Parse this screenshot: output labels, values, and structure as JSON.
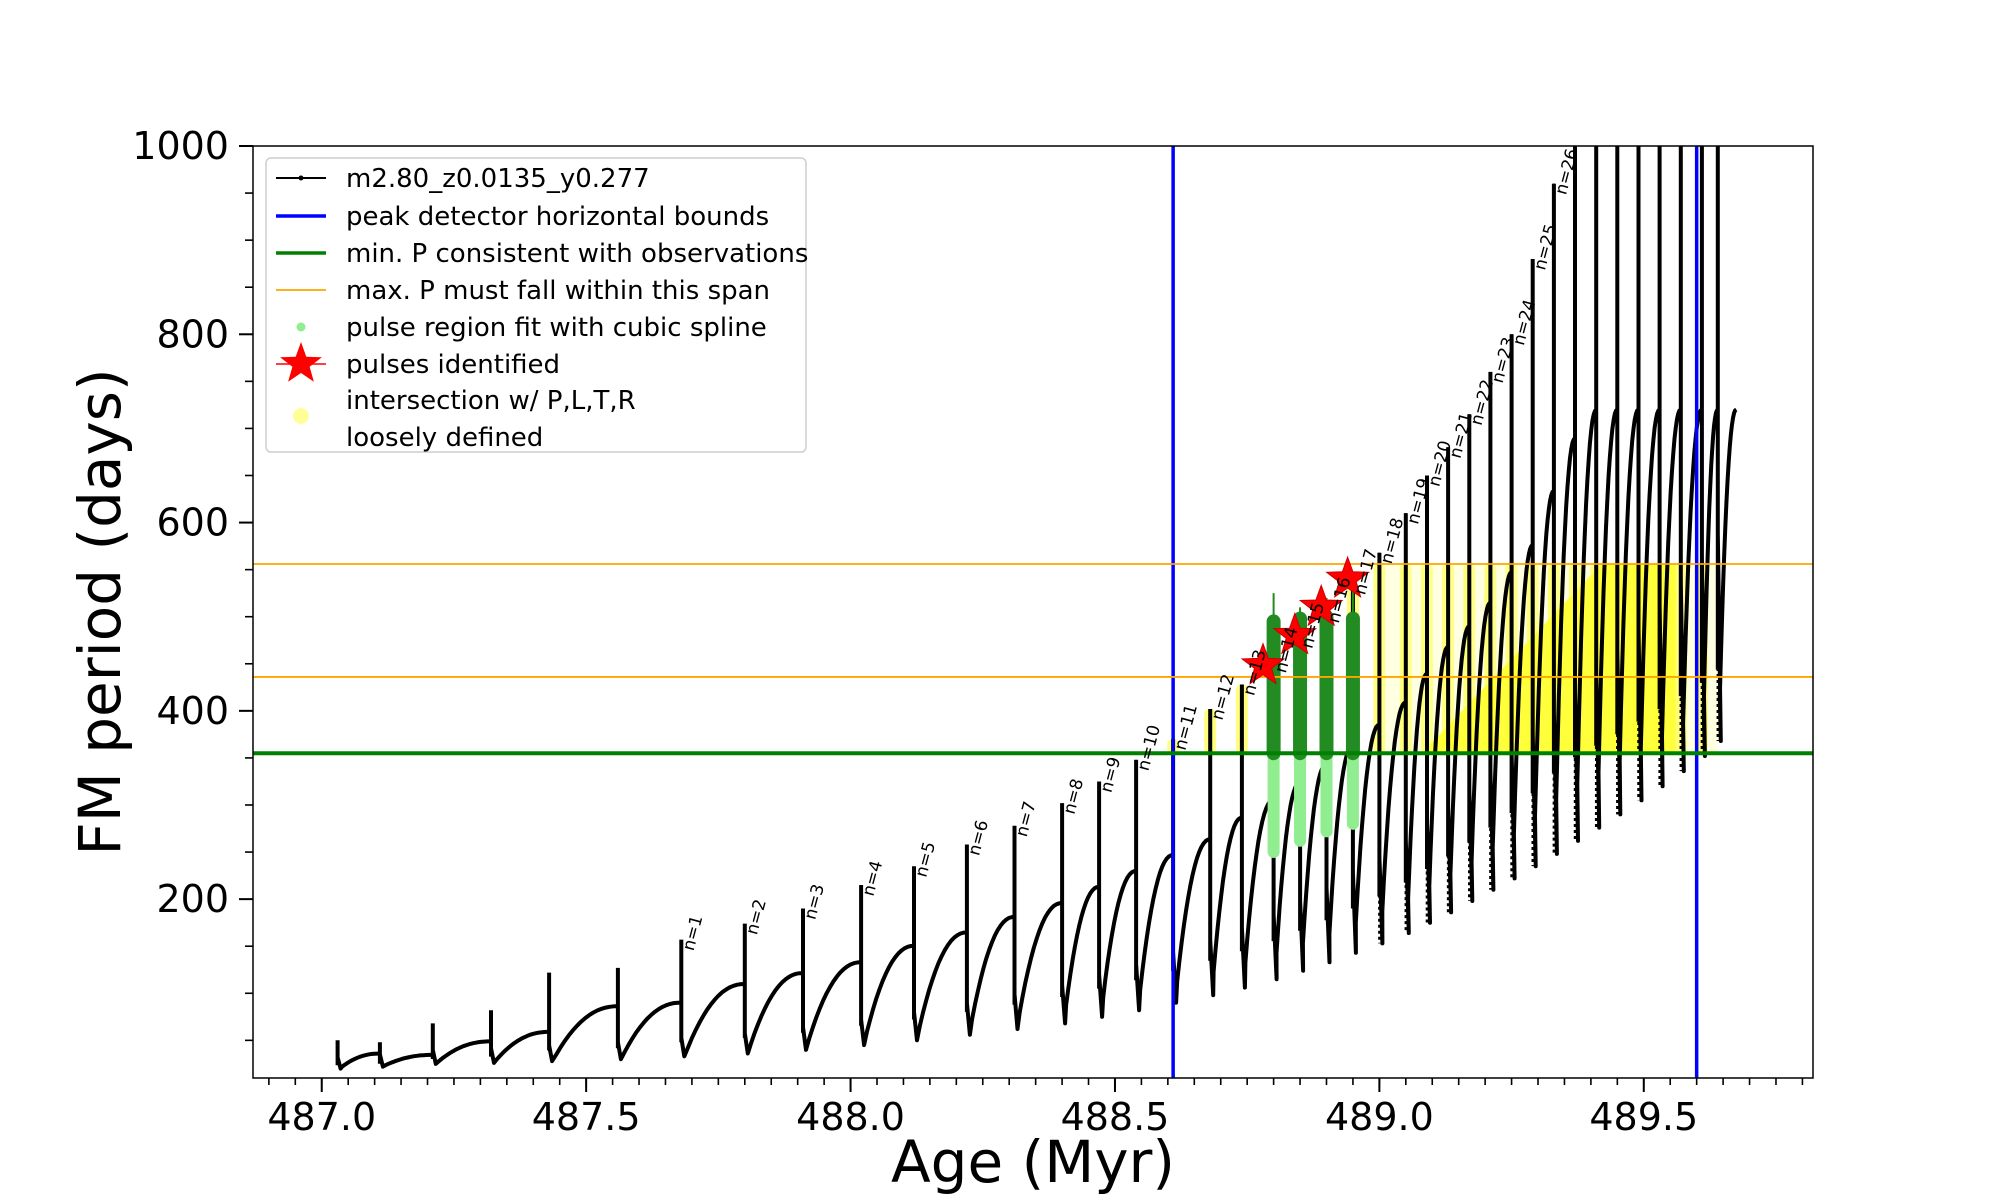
{
  "chart_data": {
    "type": "line",
    "xlabel": "Age (Myr)",
    "ylabel": "FM period (days)",
    "xlim": [
      486.87,
      489.82
    ],
    "ylim": [
      10,
      1000
    ],
    "x_ticks": [
      "487.0",
      "487.5",
      "488.0",
      "488.5",
      "489.0",
      "489.5"
    ],
    "x_tick_values": [
      487.0,
      487.5,
      488.0,
      488.5,
      489.0,
      489.5
    ],
    "y_ticks": [
      "200",
      "400",
      "600",
      "800",
      "1000"
    ],
    "y_tick_values": [
      200,
      400,
      600,
      800,
      1000
    ],
    "grid": false,
    "legend_position": "top-left",
    "legend": [
      {
        "label": "m2.80_z0.0135_y0.277",
        "color": "#000000",
        "marker": "line-dot"
      },
      {
        "label": "peak detector horizontal bounds",
        "color": "#0000ff",
        "marker": "line"
      },
      {
        "label": "min. P consistent with observations",
        "color": "#008000",
        "marker": "line"
      },
      {
        "label": "max. P must fall within this span",
        "color": "#ffa500",
        "marker": "thin-line"
      },
      {
        "label": "pulse region fit with cubic spline",
        "color": "#90ee90",
        "marker": "dot"
      },
      {
        "label": "pulses identified",
        "color": "#ff0000",
        "marker": "star"
      },
      {
        "label": "intersection w/ P,L,T,R",
        "label2": "loosely defined",
        "color": "#ffff99",
        "marker": "circle"
      }
    ],
    "reference_lines": {
      "vertical_blue_x": [
        488.61,
        489.6
      ],
      "horizontal_green_y": 355,
      "horizontal_orange_y": [
        436,
        556
      ]
    },
    "series": [
      {
        "name": "m2.80_z0.0135_y0.277",
        "pulses": [
          {
            "start": 487.03,
            "base": 20,
            "peak": 50
          },
          {
            "start": 487.11,
            "base": 22,
            "peak": 48
          },
          {
            "start": 487.21,
            "base": 25,
            "peak": 68
          },
          {
            "start": 487.32,
            "base": 26,
            "peak": 82
          },
          {
            "start": 487.43,
            "base": 28,
            "peak": 122
          },
          {
            "start": 487.56,
            "base": 30,
            "peak": 127
          },
          {
            "start": 487.68,
            "base": 33,
            "peak": 157,
            "label": "n=1"
          },
          {
            "start": 487.8,
            "base": 36,
            "peak": 174,
            "label": "n=2"
          },
          {
            "start": 487.91,
            "base": 40,
            "peak": 190,
            "label": "n=3"
          },
          {
            "start": 488.02,
            "base": 45,
            "peak": 215,
            "label": "n=4"
          },
          {
            "start": 488.12,
            "base": 50,
            "peak": 235,
            "label": "n=5"
          },
          {
            "start": 488.22,
            "base": 56,
            "peak": 258,
            "label": "n=6"
          },
          {
            "start": 488.31,
            "base": 62,
            "peak": 278,
            "label": "n=7"
          },
          {
            "start": 488.4,
            "base": 68,
            "peak": 302,
            "label": "n=8"
          },
          {
            "start": 488.47,
            "base": 75,
            "peak": 325,
            "label": "n=9"
          },
          {
            "start": 488.54,
            "base": 82,
            "peak": 348,
            "label": "n=10"
          },
          {
            "start": 488.61,
            "base": 90,
            "peak": 370,
            "label": "n=11"
          },
          {
            "start": 488.68,
            "base": 98,
            "peak": 402,
            "label": "n=12"
          },
          {
            "start": 488.74,
            "base": 106,
            "peak": 428,
            "label": "n=13"
          },
          {
            "start": 488.8,
            "base": 115,
            "peak": 452,
            "label": "n=14"
          },
          {
            "start": 488.85,
            "base": 124,
            "peak": 478,
            "label": "n=15"
          },
          {
            "start": 488.9,
            "base": 133,
            "peak": 505,
            "label": "n=16"
          },
          {
            "start": 488.95,
            "base": 143,
            "peak": 535,
            "label": "n=17"
          },
          {
            "start": 489.0,
            "base": 153,
            "peak": 568,
            "label": "n=18"
          },
          {
            "start": 489.05,
            "base": 164,
            "peak": 610,
            "label": "n=19"
          },
          {
            "start": 489.09,
            "base": 175,
            "peak": 650,
            "label": "n=20"
          },
          {
            "start": 489.13,
            "base": 186,
            "peak": 680,
            "label": "n=21"
          },
          {
            "start": 489.17,
            "base": 198,
            "peak": 715,
            "label": "n=22"
          },
          {
            "start": 489.21,
            "base": 210,
            "peak": 760,
            "label": "n=23"
          },
          {
            "start": 489.25,
            "base": 222,
            "peak": 800,
            "label": "n=24"
          },
          {
            "start": 489.29,
            "base": 235,
            "peak": 880,
            "label": "n=25"
          },
          {
            "start": 489.33,
            "base": 248,
            "peak": 960,
            "label": "n=26"
          },
          {
            "start": 489.37,
            "base": 262,
            "peak": 1000
          },
          {
            "start": 489.41,
            "base": 276,
            "peak": 1000
          },
          {
            "start": 489.45,
            "base": 290,
            "peak": 1000
          },
          {
            "start": 489.49,
            "base": 305,
            "peak": 1000
          },
          {
            "start": 489.53,
            "base": 320,
            "peak": 1000
          },
          {
            "start": 489.57,
            "base": 336,
            "peak": 1000
          },
          {
            "start": 489.61,
            "base": 352,
            "peak": 1000
          },
          {
            "start": 489.64,
            "base": 368,
            "peak": 1000
          }
        ]
      },
      {
        "name": "pulses identified",
        "points": [
          {
            "x": 488.78,
            "y": 448
          },
          {
            "x": 488.84,
            "y": 480
          },
          {
            "x": 488.89,
            "y": 510
          },
          {
            "x": 488.94,
            "y": 540
          }
        ]
      },
      {
        "name": "pulse region fit with cubic spline",
        "bars": [
          {
            "x": 488.8,
            "low": 250,
            "high": 495,
            "dark_low": 355,
            "dark_high": 525
          },
          {
            "x": 488.85,
            "low": 262,
            "high": 498,
            "dark_low": 355,
            "dark_high": 510
          },
          {
            "x": 488.9,
            "low": 272,
            "high": 500,
            "dark_low": 355,
            "dark_high": 520
          },
          {
            "x": 488.95,
            "low": 280,
            "high": 498,
            "dark_low": 355,
            "dark_high": 530
          }
        ]
      }
    ]
  }
}
